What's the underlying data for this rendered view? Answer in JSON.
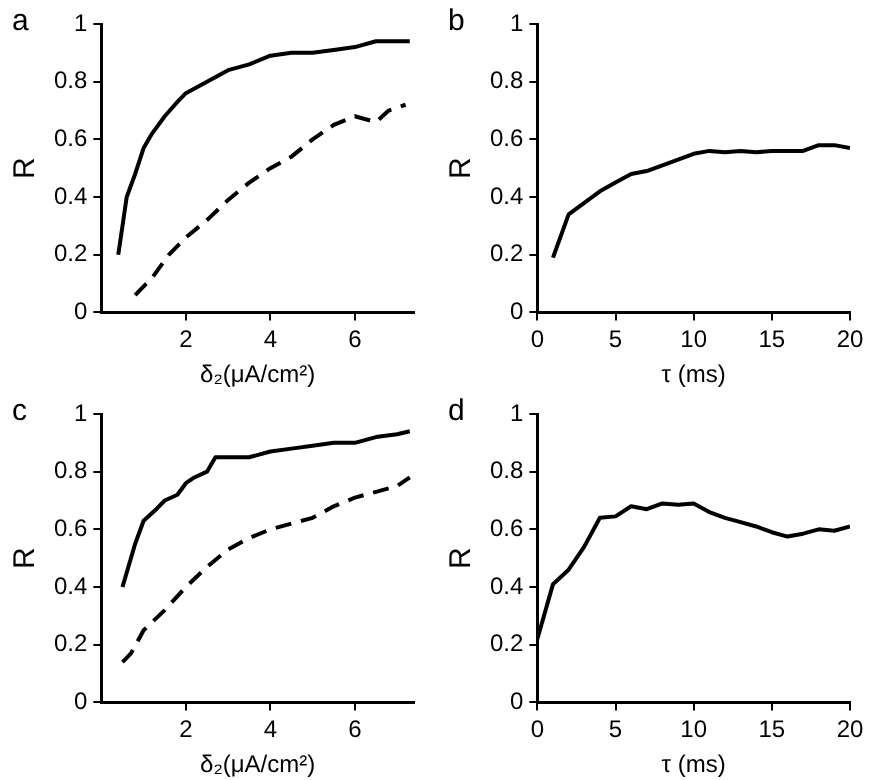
{
  "chart_data": [
    {
      "type": "line",
      "title": "a",
      "xlabel": "δ₂(μA/cm²)",
      "ylabel": "R",
      "xlim": [
        0,
        7.4
      ],
      "xticks": [
        2,
        4,
        6
      ],
      "ylim": [
        0,
        1
      ],
      "yticks": [
        0,
        0.2,
        0.4,
        0.6,
        0.8,
        1
      ],
      "grid": false,
      "legend": false,
      "marker": "none",
      "series": [
        {
          "color": "#000000",
          "line_style": "solid",
          "x": [
            0.4,
            0.6,
            0.8,
            1.0,
            1.2,
            1.5,
            1.8,
            2.0,
            2.5,
            3.0,
            3.5,
            4.0,
            4.5,
            5.0,
            5.5,
            6.0,
            6.5,
            7.0,
            7.3
          ],
          "values": [
            0.2,
            0.4,
            0.48,
            0.57,
            0.62,
            0.68,
            0.73,
            0.76,
            0.8,
            0.84,
            0.86,
            0.89,
            0.9,
            0.9,
            0.91,
            0.92,
            0.94,
            0.94,
            0.94
          ]
        },
        {
          "color": "#000000",
          "line_style": "dashed",
          "x": [
            0.8,
            1.2,
            1.6,
            2.0,
            2.5,
            3.0,
            3.5,
            4.0,
            4.5,
            5.0,
            5.5,
            6.0,
            6.5,
            6.8,
            7.2
          ],
          "values": [
            0.06,
            0.12,
            0.2,
            0.26,
            0.32,
            0.39,
            0.45,
            0.5,
            0.54,
            0.6,
            0.65,
            0.68,
            0.66,
            0.7,
            0.72
          ]
        }
      ]
    },
    {
      "type": "line",
      "title": "b",
      "xlabel": "τ (ms)",
      "ylabel": "R",
      "xlim": [
        0,
        20
      ],
      "xticks": [
        0,
        5,
        10,
        15,
        20
      ],
      "ylim": [
        0,
        1
      ],
      "yticks": [
        0,
        0.2,
        0.4,
        0.6,
        0.8,
        1
      ],
      "grid": false,
      "legend": false,
      "marker": "none",
      "series": [
        {
          "color": "#000000",
          "line_style": "solid",
          "x": [
            1,
            2,
            3,
            4,
            5,
            6,
            7,
            8,
            9,
            10,
            11,
            12,
            13,
            14,
            15,
            16,
            17,
            18,
            19,
            20
          ],
          "values": [
            0.19,
            0.34,
            0.38,
            0.42,
            0.45,
            0.48,
            0.49,
            0.51,
            0.53,
            0.55,
            0.56,
            0.555,
            0.56,
            0.555,
            0.56,
            0.56,
            0.56,
            0.58,
            0.58,
            0.57
          ]
        }
      ]
    },
    {
      "type": "line",
      "title": "c",
      "xlabel": "δ₂(μA/cm²)",
      "ylabel": "R",
      "xlim": [
        0,
        7.4
      ],
      "xticks": [
        2,
        4,
        6
      ],
      "ylim": [
        0,
        1
      ],
      "yticks": [
        0,
        0.2,
        0.4,
        0.6,
        0.8,
        1
      ],
      "grid": false,
      "legend": false,
      "marker": "none",
      "series": [
        {
          "color": "#000000",
          "line_style": "solid",
          "x": [
            0.5,
            0.8,
            1.0,
            1.3,
            1.5,
            1.8,
            2.0,
            2.2,
            2.5,
            2.7,
            3.0,
            3.5,
            4.0,
            4.5,
            5.0,
            5.5,
            6.0,
            6.5,
            7.0,
            7.3
          ],
          "values": [
            0.4,
            0.55,
            0.63,
            0.67,
            0.7,
            0.72,
            0.76,
            0.78,
            0.8,
            0.85,
            0.85,
            0.85,
            0.87,
            0.88,
            0.89,
            0.9,
            0.9,
            0.92,
            0.93,
            0.94
          ]
        },
        {
          "color": "#000000",
          "line_style": "dashed",
          "x": [
            0.5,
            0.7,
            1.0,
            1.5,
            2.0,
            2.5,
            3.0,
            3.5,
            4.0,
            4.5,
            5.0,
            5.5,
            6.0,
            6.5,
            7.0,
            7.3
          ],
          "values": [
            0.14,
            0.17,
            0.25,
            0.32,
            0.4,
            0.47,
            0.53,
            0.57,
            0.6,
            0.62,
            0.64,
            0.68,
            0.71,
            0.73,
            0.75,
            0.78
          ]
        }
      ]
    },
    {
      "type": "line",
      "title": "d",
      "xlabel": "τ (ms)",
      "ylabel": "R",
      "xlim": [
        0,
        20
      ],
      "xticks": [
        0,
        5,
        10,
        15,
        20
      ],
      "ylim": [
        0,
        1
      ],
      "yticks": [
        0,
        0.2,
        0.4,
        0.6,
        0.8,
        1
      ],
      "grid": false,
      "legend": false,
      "marker": "none",
      "series": [
        {
          "color": "#000000",
          "line_style": "solid",
          "x": [
            0,
            1,
            2,
            3,
            4,
            5,
            6,
            7,
            8,
            9,
            10,
            11,
            12,
            13,
            14,
            15,
            16,
            17,
            18,
            19,
            20
          ],
          "values": [
            0.22,
            0.41,
            0.46,
            0.54,
            0.64,
            0.645,
            0.68,
            0.67,
            0.69,
            0.685,
            0.69,
            0.66,
            0.64,
            0.625,
            0.61,
            0.59,
            0.575,
            0.585,
            0.6,
            0.595,
            0.61
          ]
        }
      ]
    }
  ]
}
